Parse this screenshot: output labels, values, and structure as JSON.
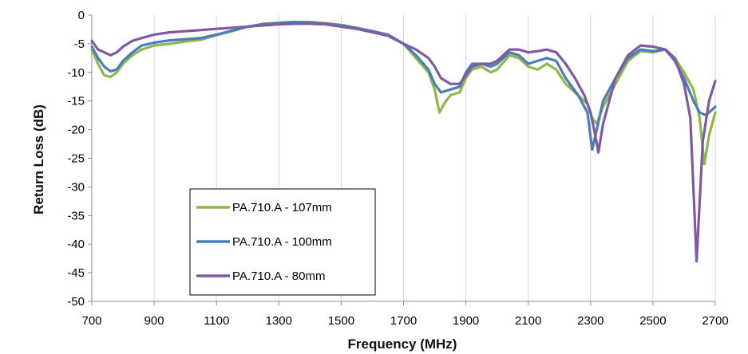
{
  "chart_data": {
    "type": "line",
    "xlabel": "Frequency (MHz)",
    "ylabel": "Return Loss (dB)",
    "xlim": [
      700,
      2700
    ],
    "ylim": [
      -50,
      0
    ],
    "xticks": [
      700,
      900,
      1100,
      1300,
      1500,
      1700,
      1900,
      2100,
      2300,
      2500,
      2700
    ],
    "yticks": [
      0,
      -5,
      -10,
      -15,
      -20,
      -25,
      -30,
      -35,
      -40,
      -45,
      -50
    ],
    "grid": "vertical",
    "legend_position": "lower-left",
    "series": [
      {
        "name": "PA.710.A - 107mm",
        "color": "#8DB84A",
        "points": [
          [
            700,
            -6
          ],
          [
            720,
            -8.5
          ],
          [
            740,
            -10.5
          ],
          [
            760,
            -10.8
          ],
          [
            780,
            -10
          ],
          [
            800,
            -8.5
          ],
          [
            830,
            -7
          ],
          [
            860,
            -6
          ],
          [
            900,
            -5.3
          ],
          [
            950,
            -5
          ],
          [
            1000,
            -4.6
          ],
          [
            1050,
            -4.3
          ],
          [
            1100,
            -3.5
          ],
          [
            1150,
            -2.8
          ],
          [
            1200,
            -2
          ],
          [
            1250,
            -1.5
          ],
          [
            1300,
            -1.3
          ],
          [
            1350,
            -1.2
          ],
          [
            1400,
            -1.2
          ],
          [
            1450,
            -1.4
          ],
          [
            1500,
            -1.7
          ],
          [
            1550,
            -2.2
          ],
          [
            1600,
            -2.8
          ],
          [
            1650,
            -3.5
          ],
          [
            1700,
            -5
          ],
          [
            1740,
            -7.5
          ],
          [
            1780,
            -10
          ],
          [
            1800,
            -13
          ],
          [
            1815,
            -17
          ],
          [
            1830,
            -15.5
          ],
          [
            1850,
            -14
          ],
          [
            1880,
            -13.5
          ],
          [
            1900,
            -11
          ],
          [
            1920,
            -9.5
          ],
          [
            1950,
            -9
          ],
          [
            1980,
            -10
          ],
          [
            2000,
            -9.5
          ],
          [
            2040,
            -7
          ],
          [
            2070,
            -7.5
          ],
          [
            2100,
            -9
          ],
          [
            2130,
            -9.5
          ],
          [
            2160,
            -8.5
          ],
          [
            2190,
            -9.5
          ],
          [
            2220,
            -12
          ],
          [
            2260,
            -14
          ],
          [
            2290,
            -15.5
          ],
          [
            2305,
            -18
          ],
          [
            2320,
            -19
          ],
          [
            2340,
            -16
          ],
          [
            2380,
            -12
          ],
          [
            2420,
            -8
          ],
          [
            2460,
            -6.3
          ],
          [
            2500,
            -6.5
          ],
          [
            2540,
            -6
          ],
          [
            2570,
            -7.5
          ],
          [
            2600,
            -10
          ],
          [
            2630,
            -13
          ],
          [
            2650,
            -18
          ],
          [
            2665,
            -26
          ],
          [
            2680,
            -21
          ],
          [
            2700,
            -17
          ]
        ]
      },
      {
        "name": "PA.710.A - 100mm",
        "color": "#4A7EBB",
        "points": [
          [
            700,
            -5.5
          ],
          [
            720,
            -7.5
          ],
          [
            740,
            -9
          ],
          [
            760,
            -9.8
          ],
          [
            780,
            -9.5
          ],
          [
            800,
            -8
          ],
          [
            830,
            -6.5
          ],
          [
            860,
            -5.3
          ],
          [
            900,
            -4.8
          ],
          [
            950,
            -4.4
          ],
          [
            1000,
            -4.2
          ],
          [
            1050,
            -4
          ],
          [
            1100,
            -3.4
          ],
          [
            1150,
            -2.7
          ],
          [
            1200,
            -2
          ],
          [
            1250,
            -1.6
          ],
          [
            1300,
            -1.4
          ],
          [
            1350,
            -1.2
          ],
          [
            1400,
            -1.3
          ],
          [
            1450,
            -1.5
          ],
          [
            1500,
            -1.8
          ],
          [
            1550,
            -2.3
          ],
          [
            1600,
            -2.8
          ],
          [
            1650,
            -3.4
          ],
          [
            1700,
            -5
          ],
          [
            1740,
            -7
          ],
          [
            1780,
            -9.5
          ],
          [
            1800,
            -12
          ],
          [
            1820,
            -13.5
          ],
          [
            1850,
            -13
          ],
          [
            1880,
            -12.5
          ],
          [
            1900,
            -10
          ],
          [
            1920,
            -8.5
          ],
          [
            1950,
            -8.5
          ],
          [
            1980,
            -9
          ],
          [
            2000,
            -8.5
          ],
          [
            2040,
            -6.5
          ],
          [
            2070,
            -7
          ],
          [
            2100,
            -8.5
          ],
          [
            2130,
            -8
          ],
          [
            2160,
            -7.5
          ],
          [
            2190,
            -8
          ],
          [
            2220,
            -11
          ],
          [
            2260,
            -14
          ],
          [
            2290,
            -17
          ],
          [
            2305,
            -23.5
          ],
          [
            2320,
            -20
          ],
          [
            2340,
            -15
          ],
          [
            2380,
            -11
          ],
          [
            2420,
            -7.5
          ],
          [
            2460,
            -6
          ],
          [
            2500,
            -6.3
          ],
          [
            2540,
            -6
          ],
          [
            2570,
            -8
          ],
          [
            2600,
            -11
          ],
          [
            2630,
            -15
          ],
          [
            2650,
            -17
          ],
          [
            2670,
            -17.5
          ],
          [
            2700,
            -16
          ]
        ]
      },
      {
        "name": "PA.710.A - 80mm",
        "color": "#7F5AA2",
        "points": [
          [
            700,
            -4.5
          ],
          [
            720,
            -6
          ],
          [
            740,
            -6.5
          ],
          [
            760,
            -7
          ],
          [
            780,
            -6.5
          ],
          [
            800,
            -5.5
          ],
          [
            830,
            -4.5
          ],
          [
            860,
            -4
          ],
          [
            900,
            -3.4
          ],
          [
            950,
            -3
          ],
          [
            1000,
            -2.8
          ],
          [
            1050,
            -2.6
          ],
          [
            1100,
            -2.4
          ],
          [
            1150,
            -2.2
          ],
          [
            1200,
            -2
          ],
          [
            1250,
            -1.8
          ],
          [
            1300,
            -1.6
          ],
          [
            1350,
            -1.5
          ],
          [
            1400,
            -1.5
          ],
          [
            1450,
            -1.6
          ],
          [
            1500,
            -2
          ],
          [
            1550,
            -2.4
          ],
          [
            1600,
            -3
          ],
          [
            1650,
            -3.6
          ],
          [
            1700,
            -5
          ],
          [
            1740,
            -6
          ],
          [
            1780,
            -7.5
          ],
          [
            1800,
            -9
          ],
          [
            1820,
            -11
          ],
          [
            1850,
            -12
          ],
          [
            1880,
            -12
          ],
          [
            1900,
            -10.5
          ],
          [
            1920,
            -9
          ],
          [
            1950,
            -8.5
          ],
          [
            1980,
            -8.5
          ],
          [
            2000,
            -8
          ],
          [
            2040,
            -6
          ],
          [
            2070,
            -6
          ],
          [
            2100,
            -6.5
          ],
          [
            2130,
            -6.3
          ],
          [
            2160,
            -6
          ],
          [
            2190,
            -6.5
          ],
          [
            2220,
            -8.5
          ],
          [
            2250,
            -11
          ],
          [
            2280,
            -14
          ],
          [
            2300,
            -17
          ],
          [
            2315,
            -21
          ],
          [
            2325,
            -24
          ],
          [
            2340,
            -19
          ],
          [
            2380,
            -11
          ],
          [
            2420,
            -7
          ],
          [
            2460,
            -5.3
          ],
          [
            2500,
            -5.5
          ],
          [
            2540,
            -6
          ],
          [
            2570,
            -7.5
          ],
          [
            2600,
            -12
          ],
          [
            2620,
            -18
          ],
          [
            2640,
            -43
          ],
          [
            2660,
            -22
          ],
          [
            2680,
            -15
          ],
          [
            2700,
            -11.5
          ]
        ]
      }
    ]
  }
}
